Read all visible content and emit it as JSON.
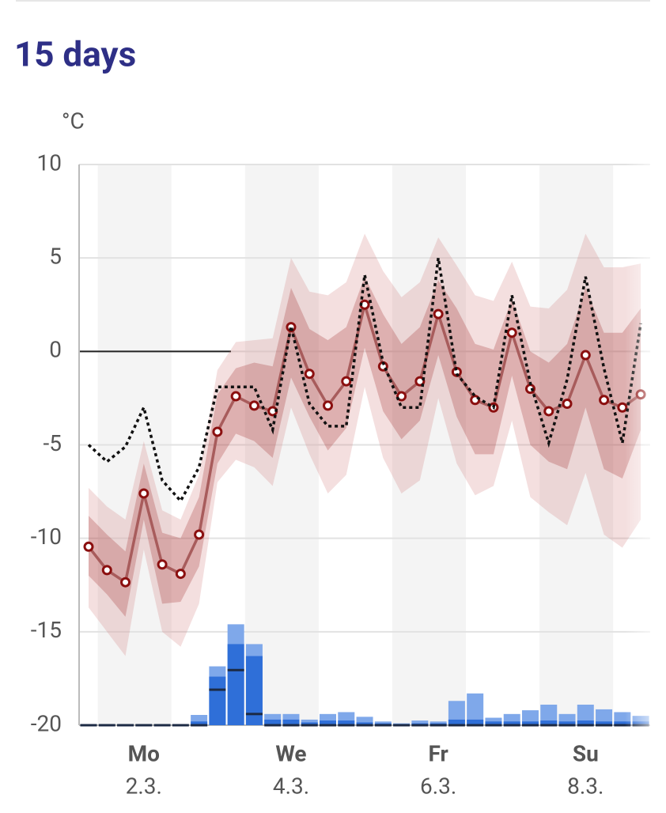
{
  "chart_data": {
    "type": "forecast",
    "title": "15 days",
    "unit": "°C",
    "ylim": [
      -20,
      10
    ],
    "yticks": [
      10,
      5,
      0,
      -5,
      -10,
      -15,
      -20
    ],
    "grid": true,
    "days": [
      {
        "label": "Mo",
        "date": "2.3."
      },
      {
        "label": "We",
        "date": "4.3."
      },
      {
        "label": "Fr",
        "date": "6.3."
      },
      {
        "label": "Su",
        "date": "8.3."
      }
    ],
    "bands": [
      {
        "color": "rgba(205,110,110,0.22)",
        "high": [
          -7.3,
          -8.3,
          -9.0,
          -4.8,
          -8.5,
          -9.0,
          -6.6,
          -1.0,
          0.5,
          0.6,
          0.7,
          5.0,
          3.2,
          3.0,
          3.7,
          6.3,
          4.3,
          2.9,
          3.7,
          6.1,
          4.6,
          3.0,
          2.7,
          4.8,
          2.4,
          2.3,
          3.3,
          6.3,
          4.5,
          4.5,
          4.7
        ],
        "low": [
          -13.7,
          -15.0,
          -16.3,
          -10.6,
          -15.0,
          -15.8,
          -13.5,
          -7.0,
          -5.8,
          -6.2,
          -7.2,
          -3.0,
          -5.5,
          -7.6,
          -6.6,
          -1.9,
          -5.7,
          -7.6,
          -6.9,
          -2.5,
          -6.0,
          -7.7,
          -7.2,
          -3.7,
          -7.8,
          -8.6,
          -9.3,
          -6.5,
          -9.8,
          -10.5,
          -9.0
        ]
      },
      {
        "color": "rgba(165,55,55,0.28)",
        "high": [
          -8.8,
          -9.8,
          -10.7,
          -6.0,
          -9.7,
          -10.0,
          -7.8,
          -2.3,
          -0.9,
          -0.6,
          -0.8,
          3.4,
          1.2,
          0.6,
          1.3,
          4.0,
          2.0,
          0.4,
          1.3,
          3.8,
          2.3,
          0.4,
          0.1,
          2.8,
          0.0,
          -0.6,
          0.4,
          3.4,
          1.0,
          1.0,
          2.3
        ],
        "low": [
          -12.0,
          -13.0,
          -14.2,
          -9.0,
          -13.5,
          -13.4,
          -11.5,
          -6.0,
          -4.4,
          -4.8,
          -5.7,
          -1.4,
          -3.5,
          -5.3,
          -4.1,
          0.2,
          -3.2,
          -4.7,
          -3.7,
          -0.2,
          -3.5,
          -5.5,
          -5.5,
          -1.3,
          -5.0,
          -5.9,
          -6.3,
          -3.0,
          -6.3,
          -6.8,
          -4.2
        ]
      }
    ],
    "series": [
      {
        "color": "#a85c5c",
        "marker": "#8b0f0f",
        "style": "solid",
        "values": [
          -10.45,
          -11.7,
          -12.35,
          -7.6,
          -11.4,
          -11.9,
          -9.8,
          -4.3,
          -2.4,
          -2.9,
          -3.2,
          1.3,
          -1.2,
          -2.9,
          -1.6,
          2.5,
          -0.8,
          -2.4,
          -1.6,
          2.0,
          -1.1,
          -2.6,
          -3.0,
          1.0,
          -2.0,
          -3.2,
          -2.8,
          -0.2,
          -2.6,
          -3.0,
          -2.3
        ]
      },
      {
        "color": "#111111",
        "style": "dotted",
        "values": [
          -5.0,
          -5.9,
          -5.1,
          -3.0,
          -6.9,
          -8.0,
          -6.2,
          -1.9,
          -1.9,
          -1.9,
          -4.2,
          1.35,
          -2.8,
          -4.0,
          -4.0,
          4.1,
          -0.6,
          -3.0,
          -3.0,
          5.0,
          -1.2,
          -2.4,
          -3.0,
          3.0,
          -1.7,
          -4.9,
          -1.5,
          4.0,
          -0.9,
          -4.9,
          1.5
        ]
      }
    ],
    "precipitation": {
      "colors": [
        "#7fa8ea",
        "#2f6fd8",
        "#1c2a44"
      ],
      "high": [
        -20,
        -20,
        -20,
        -20,
        -20,
        -20,
        -19.45,
        -16.85,
        -14.6,
        -15.66,
        -19.4,
        -19.4,
        -19.7,
        -19.4,
        -19.3,
        -19.55,
        -19.8,
        -19.9,
        -19.75,
        -19.8,
        -18.7,
        -18.3,
        -19.6,
        -19.4,
        -19.2,
        -18.9,
        -19.4,
        -18.9,
        -19.15,
        -19.3,
        -19.5
      ],
      "mid": [
        -20,
        -20,
        -20,
        -20,
        -20,
        -20,
        -19.8,
        -17.4,
        -15.66,
        -16.3,
        -19.7,
        -19.7,
        -19.85,
        -19.75,
        -19.75,
        -19.85,
        -19.9,
        -19.95,
        -19.9,
        -19.9,
        -19.7,
        -19.7,
        -19.8,
        -19.8,
        -19.8,
        -19.75,
        -19.8,
        -19.75,
        -19.8,
        -19.8,
        -19.8
      ],
      "median": [
        -20,
        -20,
        -20,
        -20,
        -20,
        -20,
        -20,
        -18.1,
        -17.05,
        -19.4,
        -20,
        -20,
        -20,
        -20,
        -20,
        -20,
        -20,
        -20,
        -20,
        -20,
        -20,
        -20,
        -20,
        -20,
        -20,
        -20,
        -20,
        -20,
        -20,
        -20,
        -20
      ]
    }
  }
}
